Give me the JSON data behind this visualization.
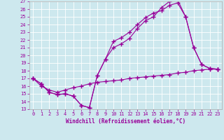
{
  "xlabel": "Windchill (Refroidissement éolien,°C)",
  "bg_color": "#cde8ee",
  "line_color": "#990099",
  "xlim": [
    -0.5,
    23.5
  ],
  "ylim": [
    13,
    27
  ],
  "xticks": [
    0,
    1,
    2,
    3,
    4,
    5,
    6,
    7,
    8,
    9,
    10,
    11,
    12,
    13,
    14,
    15,
    16,
    17,
    18,
    19,
    20,
    21,
    22,
    23
  ],
  "yticks": [
    13,
    14,
    15,
    16,
    17,
    18,
    19,
    20,
    21,
    22,
    23,
    24,
    25,
    26,
    27
  ],
  "line1_x": [
    0,
    1,
    2,
    3,
    4,
    5,
    6,
    7,
    8,
    9,
    10,
    11,
    12,
    13,
    14,
    15,
    16,
    17,
    18,
    19,
    20,
    21,
    22,
    23
  ],
  "line1_y": [
    17,
    16.3,
    15.2,
    14.9,
    15.0,
    14.7,
    13.5,
    13.2,
    17.4,
    19.5,
    21.0,
    21.5,
    22.2,
    23.5,
    24.5,
    25.0,
    26.2,
    27.0,
    27.2,
    25.0,
    21.0,
    18.8,
    18.3,
    18.2
  ],
  "line2_x": [
    0,
    1,
    2,
    3,
    4,
    5,
    6,
    7,
    8,
    9,
    10,
    11,
    12,
    13,
    14,
    15,
    16,
    17,
    18,
    19,
    20,
    21,
    22,
    23
  ],
  "line2_y": [
    17,
    16.3,
    15.2,
    14.9,
    15.0,
    14.7,
    13.5,
    13.2,
    17.4,
    19.5,
    21.8,
    22.3,
    23.0,
    24.0,
    24.9,
    25.5,
    25.8,
    26.5,
    26.8,
    25.0,
    21.0,
    18.8,
    18.3,
    18.2
  ],
  "line3_x": [
    0,
    1,
    2,
    3,
    4,
    5,
    6,
    7,
    8,
    9,
    10,
    11,
    12,
    13,
    14,
    15,
    16,
    17,
    18,
    19,
    20,
    21,
    22,
    23
  ],
  "line3_y": [
    17,
    16.0,
    15.5,
    15.2,
    15.5,
    15.8,
    16.0,
    16.3,
    16.5,
    16.6,
    16.7,
    16.8,
    17.0,
    17.1,
    17.2,
    17.3,
    17.4,
    17.5,
    17.7,
    17.8,
    18.0,
    18.1,
    18.2,
    18.2
  ]
}
